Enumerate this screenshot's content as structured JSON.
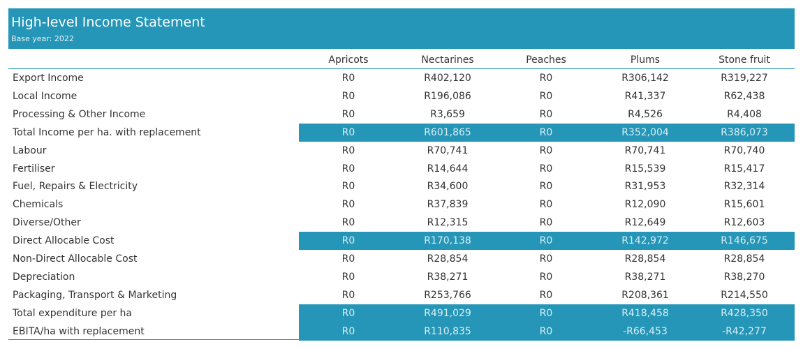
{
  "header": {
    "title": "High-level Income Statement",
    "subtitle": "Base year: 2022"
  },
  "columns": [
    "Apricots",
    "Nectarines",
    "Peaches",
    "Plums",
    "Stone fruit"
  ],
  "highlight_color": "#2596b7",
  "rows": [
    {
      "label": "Export Income",
      "highlight": false,
      "values": [
        "R0",
        "R402,120",
        "R0",
        "R306,142",
        "R319,227"
      ]
    },
    {
      "label": "Local Income",
      "highlight": false,
      "values": [
        "R0",
        "R196,086",
        "R0",
        "R41,337",
        "R62,438"
      ]
    },
    {
      "label": "Processing & Other Income",
      "highlight": false,
      "values": [
        "R0",
        "R3,659",
        "R0",
        "R4,526",
        "R4,408"
      ]
    },
    {
      "label": "Total Income per ha. with replacement",
      "highlight": true,
      "values": [
        "R0",
        "R601,865",
        "R0",
        "R352,004",
        "R386,073"
      ]
    },
    {
      "label": "Labour",
      "highlight": false,
      "values": [
        "R0",
        "R70,741",
        "R0",
        "R70,741",
        "R70,740"
      ]
    },
    {
      "label": "Fertiliser",
      "highlight": false,
      "values": [
        "R0",
        "R14,644",
        "R0",
        "R15,539",
        "R15,417"
      ]
    },
    {
      "label": "Fuel, Repairs & Electricity",
      "highlight": false,
      "values": [
        "R0",
        "R34,600",
        "R0",
        "R31,953",
        "R32,314"
      ]
    },
    {
      "label": "Chemicals",
      "highlight": false,
      "values": [
        "R0",
        "R37,839",
        "R0",
        "R12,090",
        "R15,601"
      ]
    },
    {
      "label": "Diverse/Other",
      "highlight": false,
      "values": [
        "R0",
        "R12,315",
        "R0",
        "R12,649",
        "R12,603"
      ]
    },
    {
      "label": "Direct Allocable Cost",
      "highlight": true,
      "values": [
        "R0",
        "R170,138",
        "R0",
        "R142,972",
        "R146,675"
      ]
    },
    {
      "label": "Non-Direct Allocable Cost",
      "highlight": false,
      "values": [
        "R0",
        "R28,854",
        "R0",
        "R28,854",
        "R28,854"
      ]
    },
    {
      "label": "Depreciation",
      "highlight": false,
      "values": [
        "R0",
        "R38,271",
        "R0",
        "R38,271",
        "R38,270"
      ]
    },
    {
      "label": "Packaging, Transport & Marketing",
      "highlight": false,
      "values": [
        "R0",
        "R253,766",
        "R0",
        "R208,361",
        "R214,550"
      ]
    },
    {
      "label": "Total expenditure per ha",
      "highlight": true,
      "values": [
        "R0",
        "R491,029",
        "R0",
        "R418,458",
        "R428,350"
      ]
    },
    {
      "label": "EBITA/ha with replacement",
      "highlight": true,
      "values": [
        "R0",
        "R110,835",
        "R0",
        "-R66,453",
        "-R42,277"
      ]
    }
  ]
}
